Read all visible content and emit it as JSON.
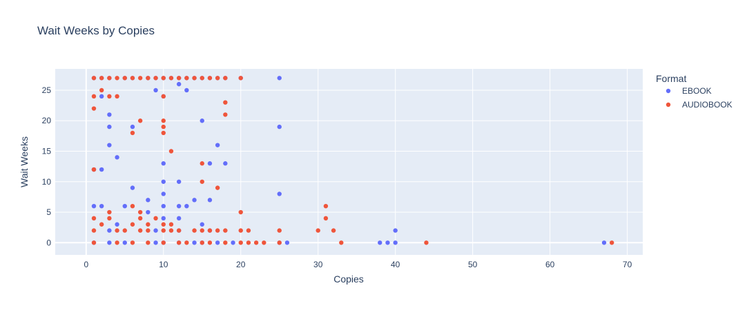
{
  "chart_data": {
    "type": "scatter",
    "title": "Wait Weeks by Copies",
    "xlabel": "Copies",
    "ylabel": "Wait Weeks",
    "xlim": [
      -4,
      72
    ],
    "ylim": [
      -2,
      28.5
    ],
    "xticks": [
      0,
      10,
      20,
      30,
      40,
      50,
      60,
      70
    ],
    "yticks": [
      0,
      5,
      10,
      15,
      20,
      25
    ],
    "grid": true,
    "legend": {
      "title": "Format",
      "placement": "right"
    },
    "colors": {
      "plot_bg": "#e5ecf6",
      "grid": "#ffffff",
      "EBOOK": "#636efa",
      "AUDIOBOOK": "#ef553b"
    },
    "series": [
      {
        "name": "EBOOK",
        "points": [
          [
            1,
            27
          ],
          [
            2,
            27
          ],
          [
            3,
            27
          ],
          [
            5,
            27
          ],
          [
            6,
            27
          ],
          [
            8,
            27
          ],
          [
            9,
            27
          ],
          [
            10,
            27
          ],
          [
            11,
            27
          ],
          [
            12,
            27
          ],
          [
            13,
            27
          ],
          [
            14,
            27
          ],
          [
            15,
            27
          ],
          [
            16,
            27
          ],
          [
            17,
            27
          ],
          [
            18,
            27
          ],
          [
            20,
            27
          ],
          [
            25,
            27
          ],
          [
            12,
            26
          ],
          [
            9,
            25
          ],
          [
            13,
            25
          ],
          [
            2,
            24
          ],
          [
            10,
            24
          ],
          [
            3,
            21
          ],
          [
            15,
            20
          ],
          [
            3,
            19
          ],
          [
            6,
            19
          ],
          [
            25,
            19
          ],
          [
            3,
            16
          ],
          [
            17,
            16
          ],
          [
            4,
            14
          ],
          [
            10,
            13
          ],
          [
            16,
            13
          ],
          [
            18,
            13
          ],
          [
            1,
            12
          ],
          [
            2,
            12
          ],
          [
            10,
            10
          ],
          [
            12,
            10
          ],
          [
            6,
            9
          ],
          [
            10,
            8
          ],
          [
            25,
            8
          ],
          [
            8,
            7
          ],
          [
            14,
            7
          ],
          [
            16,
            7
          ],
          [
            1,
            6
          ],
          [
            2,
            6
          ],
          [
            5,
            6
          ],
          [
            10,
            6
          ],
          [
            12,
            6
          ],
          [
            13,
            6
          ],
          [
            8,
            5
          ],
          [
            10,
            4
          ],
          [
            12,
            4
          ],
          [
            4,
            3
          ],
          [
            15,
            3
          ],
          [
            3,
            2
          ],
          [
            9,
            2
          ],
          [
            12,
            2
          ],
          [
            16,
            2
          ],
          [
            40,
            2
          ],
          [
            1,
            0
          ],
          [
            3,
            0
          ],
          [
            5,
            0
          ],
          [
            9,
            0
          ],
          [
            10,
            0
          ],
          [
            12,
            0
          ],
          [
            14,
            0
          ],
          [
            15,
            0
          ],
          [
            17,
            0
          ],
          [
            19,
            0
          ],
          [
            25,
            0
          ],
          [
            26,
            0
          ],
          [
            38,
            0
          ],
          [
            39,
            0
          ],
          [
            40,
            0
          ],
          [
            67,
            0
          ]
        ]
      },
      {
        "name": "AUDIOBOOK",
        "points": [
          [
            1,
            27
          ],
          [
            2,
            27
          ],
          [
            3,
            27
          ],
          [
            4,
            27
          ],
          [
            5,
            27
          ],
          [
            6,
            27
          ],
          [
            7,
            27
          ],
          [
            8,
            27
          ],
          [
            9,
            27
          ],
          [
            10,
            27
          ],
          [
            11,
            27
          ],
          [
            12,
            27
          ],
          [
            13,
            27
          ],
          [
            14,
            27
          ],
          [
            15,
            27
          ],
          [
            16,
            27
          ],
          [
            17,
            27
          ],
          [
            18,
            27
          ],
          [
            20,
            27
          ],
          [
            2,
            25
          ],
          [
            1,
            24
          ],
          [
            3,
            24
          ],
          [
            4,
            24
          ],
          [
            10,
            24
          ],
          [
            18,
            23
          ],
          [
            1,
            22
          ],
          [
            18,
            21
          ],
          [
            7,
            20
          ],
          [
            10,
            20
          ],
          [
            10,
            19
          ],
          [
            6,
            18
          ],
          [
            10,
            18
          ],
          [
            11,
            15
          ],
          [
            15,
            13
          ],
          [
            1,
            12
          ],
          [
            15,
            10
          ],
          [
            17,
            9
          ],
          [
            6,
            6
          ],
          [
            31,
            6
          ],
          [
            3,
            5
          ],
          [
            7,
            5
          ],
          [
            20,
            5
          ],
          [
            1,
            4
          ],
          [
            3,
            4
          ],
          [
            7,
            4
          ],
          [
            9,
            4
          ],
          [
            31,
            4
          ],
          [
            2,
            3
          ],
          [
            6,
            3
          ],
          [
            8,
            3
          ],
          [
            10,
            3
          ],
          [
            11,
            3
          ],
          [
            1,
            2
          ],
          [
            4,
            2
          ],
          [
            5,
            2
          ],
          [
            7,
            2
          ],
          [
            8,
            2
          ],
          [
            10,
            2
          ],
          [
            11,
            2
          ],
          [
            12,
            2
          ],
          [
            14,
            2
          ],
          [
            15,
            2
          ],
          [
            16,
            2
          ],
          [
            17,
            2
          ],
          [
            18,
            2
          ],
          [
            20,
            2
          ],
          [
            21,
            2
          ],
          [
            25,
            2
          ],
          [
            30,
            2
          ],
          [
            32,
            2
          ],
          [
            1,
            0
          ],
          [
            4,
            0
          ],
          [
            6,
            0
          ],
          [
            8,
            0
          ],
          [
            10,
            0
          ],
          [
            12,
            0
          ],
          [
            13,
            0
          ],
          [
            15,
            0
          ],
          [
            16,
            0
          ],
          [
            18,
            0
          ],
          [
            20,
            0
          ],
          [
            21,
            0
          ],
          [
            22,
            0
          ],
          [
            23,
            0
          ],
          [
            25,
            0
          ],
          [
            33,
            0
          ],
          [
            44,
            0
          ],
          [
            68,
            0
          ]
        ]
      }
    ]
  }
}
